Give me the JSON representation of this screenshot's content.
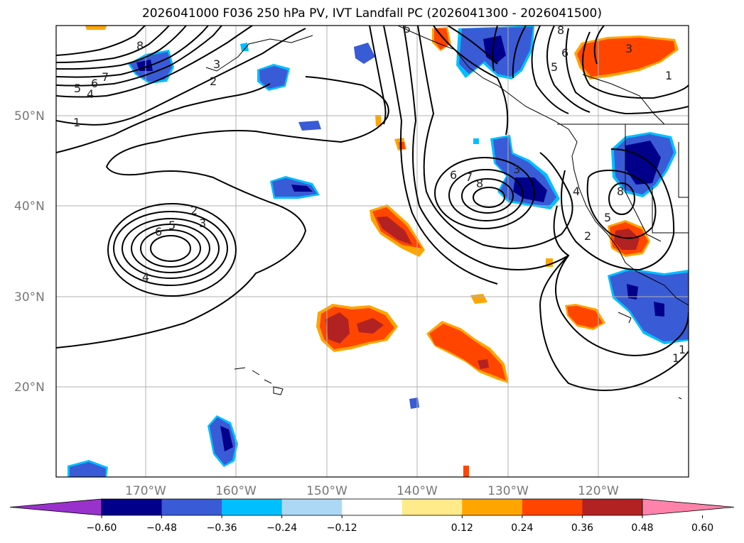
{
  "title": "2026041000 F036 250 hPa PV, IVT Landfall PC (2026041300 - 2026041500)",
  "map": {
    "lon_range": [
      -180,
      -110
    ],
    "lat_range": [
      10,
      60
    ],
    "lat_labels": [
      "50°N",
      "40°N",
      "30°N",
      "20°N"
    ],
    "lon_labels": [
      "170°W",
      "160°W",
      "150°W",
      "140°W",
      "130°W",
      "120°W"
    ],
    "gridlines": true,
    "contour_labels": [
      "8",
      "5",
      "4",
      "6",
      "7",
      "3",
      "2",
      "1",
      "6",
      "5",
      "3",
      "2",
      "4",
      "6",
      "7",
      "8",
      "5",
      "8",
      "3",
      "6",
      "5",
      "1",
      "4",
      "8",
      "5",
      "2",
      "1",
      "3",
      "1"
    ]
  },
  "colorbar": {
    "ticks": [
      "−0.60",
      "−0.48",
      "−0.36",
      "−0.24",
      "−0.12",
      "0.12",
      "0.24",
      "0.36",
      "0.48",
      "0.60"
    ],
    "colors": [
      "#9932cc",
      "#00008b",
      "#3a5bd6",
      "#00bfff",
      "#add8f5",
      "#ffffff",
      "#ffeb8a",
      "#ffa500",
      "#ff4500",
      "#b22222",
      "#ff82ab"
    ],
    "extend": "both"
  }
}
